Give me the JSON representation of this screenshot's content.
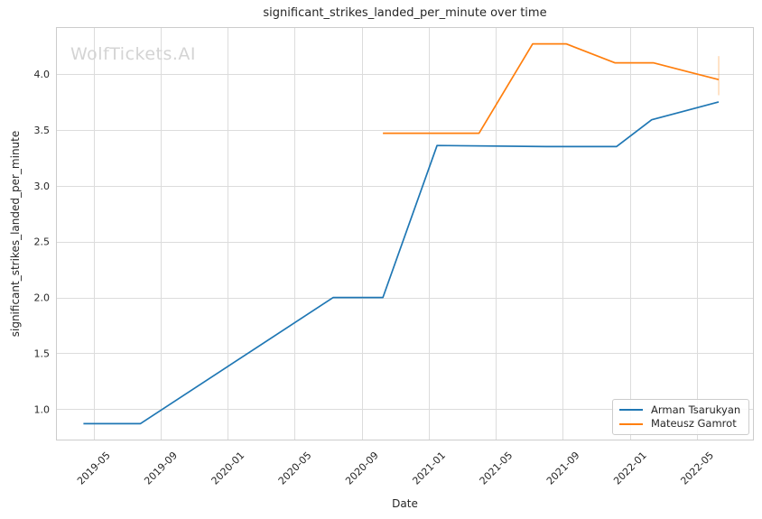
{
  "figure": {
    "watermark": "WolfTickets.AI"
  },
  "chart_data": {
    "type": "line",
    "title": "significant_strikes_landed_per_minute over time",
    "xlabel": "Date",
    "ylabel": "significant_strikes_landed_per_minute",
    "x_tick_labels": [
      "2019-05",
      "2019-09",
      "2020-01",
      "2020-05",
      "2020-09",
      "2021-01",
      "2021-05",
      "2021-09",
      "2022-01",
      "2022-05"
    ],
    "y_ticks": [
      1.0,
      1.5,
      2.0,
      2.5,
      3.0,
      3.5,
      4.0
    ],
    "xlim_dates": [
      "2019-02-24",
      "2022-08-13"
    ],
    "ylim": [
      0.72,
      4.42
    ],
    "grid": true,
    "legend_position": "lower right",
    "series": [
      {
        "name": "Arman Tsarukyan",
        "color": "#1f77b4",
        "points": [
          [
            "2019-04-13",
            0.87
          ],
          [
            "2019-07-25",
            0.87
          ],
          [
            "2020-07-10",
            2.0
          ],
          [
            "2020-10-09",
            2.0
          ],
          [
            "2021-01-16",
            3.36
          ],
          [
            "2021-08-01",
            3.35
          ],
          [
            "2021-12-07",
            3.35
          ],
          [
            "2022-02-10",
            3.59
          ],
          [
            "2022-06-10",
            3.75
          ]
        ]
      },
      {
        "name": "Mateusz Gamrot",
        "color": "#ff7f0e",
        "points": [
          [
            "2020-10-09",
            3.47
          ],
          [
            "2021-04-01",
            3.47
          ],
          [
            "2021-07-07",
            4.27
          ],
          [
            "2021-09-07",
            4.27
          ],
          [
            "2021-12-04",
            4.1
          ],
          [
            "2022-02-13",
            4.1
          ],
          [
            "2022-06-10",
            3.95
          ]
        ],
        "error_bar": {
          "date": "2022-06-10",
          "low": 3.81,
          "high": 4.16
        }
      }
    ],
    "colors": {
      "grid": "#dcdcdc",
      "spine": "#cccccc",
      "text": "#262626",
      "watermark": "#d4d4d4"
    }
  }
}
